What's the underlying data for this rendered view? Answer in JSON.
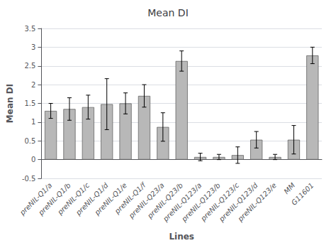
{
  "chart_data": {
    "type": "bar",
    "title": "Mean DI",
    "xlabel": "Lines",
    "ylabel": "Mean DI",
    "categories": [
      "preNIL-Q1/a",
      "preNIL-Q1/b",
      "preNIL-Q1/c",
      "preNIL-Q1/d",
      "preNIL-Q1/e",
      "preNIL-Q1/f",
      "preNIL-Q23/a",
      "preNIL-Q23/b",
      "preNIL-Q123/a",
      "preNIL-Q123/b",
      "preNIL-Q123/c",
      "preNIL-Q123/d",
      "preNIL-Q123/e",
      "MM",
      "G11601"
    ],
    "values": [
      1.3,
      1.35,
      1.4,
      1.48,
      1.5,
      1.7,
      0.87,
      2.63,
      0.07,
      0.07,
      0.12,
      0.53,
      0.07,
      0.53,
      2.78
    ],
    "errors": [
      0.2,
      0.3,
      0.32,
      0.68,
      0.28,
      0.3,
      0.38,
      0.27,
      0.1,
      0.07,
      0.22,
      0.22,
      0.07,
      0.38,
      0.22
    ],
    "color": "#b8b8b8",
    "ylim": [
      -0.5,
      3.5
    ],
    "yticks": [
      -0.5,
      0,
      0.5,
      1.0,
      1.5,
      2.0,
      2.5,
      3.0,
      3.5
    ],
    "grid": true
  }
}
